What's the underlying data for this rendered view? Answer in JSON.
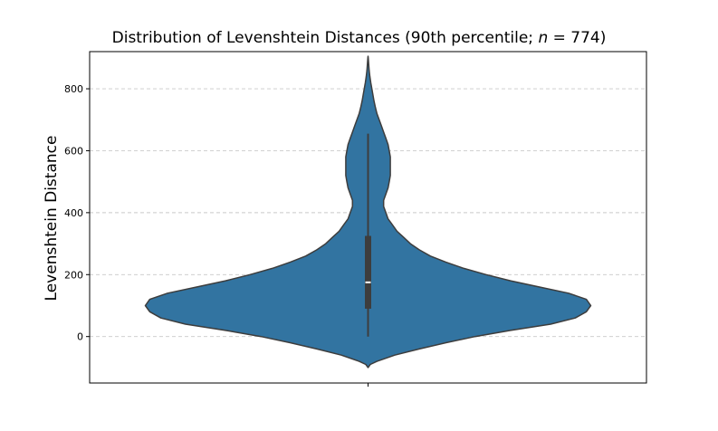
{
  "chart_data": {
    "type": "violin",
    "title": {
      "prefix": "Distribution of Levenshtein Distances (90th percentile; ",
      "n_symbol": "n",
      "n_value": "774",
      "suffix": ")"
    },
    "xlabel": "",
    "ylabel": "Levenshtein Distance",
    "ylim": [
      -150,
      920
    ],
    "yticks": [
      0,
      200,
      400,
      600,
      800
    ],
    "grid": {
      "y": true,
      "style": "dashed"
    },
    "colors": {
      "violin_fill": "#3274a1",
      "violin_edge": "#3d3d3d",
      "box": "#3d3d3d",
      "median": "#ffffff",
      "grid": "#c9c9c9"
    },
    "density": [
      [
        -100,
        0.0
      ],
      [
        -90,
        0.01
      ],
      [
        -80,
        0.04
      ],
      [
        -60,
        0.12
      ],
      [
        -40,
        0.23
      ],
      [
        -20,
        0.35
      ],
      [
        0,
        0.48
      ],
      [
        20,
        0.64
      ],
      [
        40,
        0.82
      ],
      [
        60,
        0.93
      ],
      [
        80,
        0.98
      ],
      [
        100,
        1.0
      ],
      [
        120,
        0.98
      ],
      [
        140,
        0.9
      ],
      [
        160,
        0.77
      ],
      [
        180,
        0.64
      ],
      [
        200,
        0.53
      ],
      [
        220,
        0.43
      ],
      [
        240,
        0.35
      ],
      [
        260,
        0.28
      ],
      [
        280,
        0.23
      ],
      [
        300,
        0.19
      ],
      [
        320,
        0.16
      ],
      [
        340,
        0.13
      ],
      [
        360,
        0.11
      ],
      [
        380,
        0.09
      ],
      [
        400,
        0.08
      ],
      [
        420,
        0.07
      ],
      [
        440,
        0.07
      ],
      [
        460,
        0.08
      ],
      [
        480,
        0.09
      ],
      [
        500,
        0.095
      ],
      [
        520,
        0.1
      ],
      [
        540,
        0.1
      ],
      [
        560,
        0.1
      ],
      [
        580,
        0.1
      ],
      [
        600,
        0.095
      ],
      [
        620,
        0.09
      ],
      [
        640,
        0.08
      ],
      [
        660,
        0.07
      ],
      [
        680,
        0.06
      ],
      [
        700,
        0.05
      ],
      [
        720,
        0.04
      ],
      [
        740,
        0.033
      ],
      [
        760,
        0.027
      ],
      [
        780,
        0.022
      ],
      [
        800,
        0.017
      ],
      [
        820,
        0.012
      ],
      [
        840,
        0.008
      ],
      [
        860,
        0.005
      ],
      [
        880,
        0.003
      ],
      [
        900,
        0.001
      ],
      [
        905,
        0.0
      ]
    ],
    "density_peak_ref": 0.63,
    "box": {
      "whisker_low": 0,
      "q1": 90,
      "median": 175,
      "q3": 325,
      "whisker_high": 655
    }
  }
}
